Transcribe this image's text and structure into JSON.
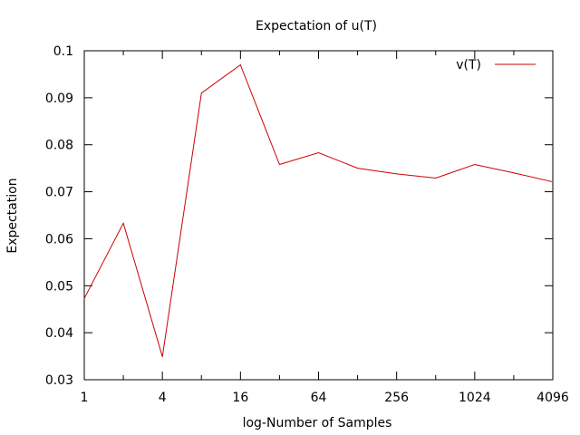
{
  "chart_data": {
    "type": "line",
    "title": "Expectation of u(T)",
    "xlabel": "log-Number of Samples",
    "ylabel": "Expectation",
    "x_scale": "log2",
    "xlim": [
      1,
      4096
    ],
    "ylim": [
      0.03,
      0.1
    ],
    "x_ticks": [
      1,
      4,
      16,
      64,
      256,
      1024,
      4096
    ],
    "x_tick_labels": [
      "1",
      "4",
      "16",
      "64",
      "256",
      "1024",
      "4096"
    ],
    "y_ticks": [
      0.03,
      0.04,
      0.05,
      0.06,
      0.07,
      0.08,
      0.09,
      0.1
    ],
    "y_tick_labels": [
      "0.03",
      "0.04",
      "0.05",
      "0.06",
      "0.07",
      "0.08",
      "0.09",
      "0.1"
    ],
    "grid": false,
    "legend_position": "top-right",
    "series": [
      {
        "name": "v(T)",
        "color": "#cc0000",
        "x": [
          1,
          2,
          4,
          8,
          16,
          32,
          64,
          128,
          256,
          512,
          1024,
          2048,
          4096
        ],
        "y": [
          0.0473,
          0.0633,
          0.0349,
          0.091,
          0.097,
          0.0758,
          0.0783,
          0.075,
          0.0738,
          0.0729,
          0.0758,
          0.074,
          0.0721
        ]
      }
    ]
  }
}
